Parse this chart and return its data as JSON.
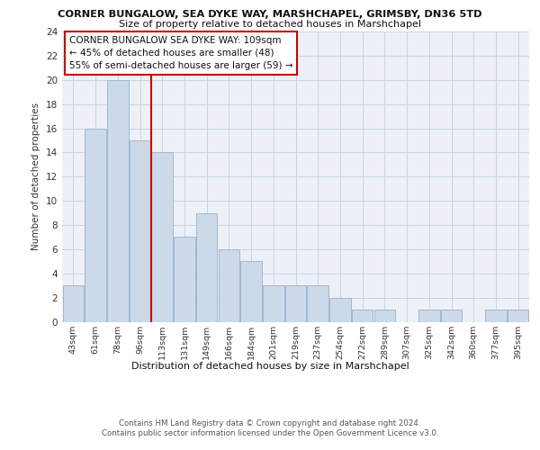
{
  "title1": "CORNER BUNGALOW, SEA DYKE WAY, MARSHCHAPEL, GRIMSBY, DN36 5TD",
  "title2": "Size of property relative to detached houses in Marshchapel",
  "xlabel": "Distribution of detached houses by size in Marshchapel",
  "ylabel": "Number of detached properties",
  "categories": [
    "43sqm",
    "61sqm",
    "78sqm",
    "96sqm",
    "113sqm",
    "131sqm",
    "149sqm",
    "166sqm",
    "184sqm",
    "201sqm",
    "219sqm",
    "237sqm",
    "254sqm",
    "272sqm",
    "289sqm",
    "307sqm",
    "325sqm",
    "342sqm",
    "360sqm",
    "377sqm",
    "395sqm"
  ],
  "values": [
    3,
    16,
    20,
    15,
    14,
    7,
    9,
    6,
    5,
    3,
    3,
    3,
    2,
    1,
    1,
    0,
    1,
    1,
    0,
    1,
    1
  ],
  "bar_color": "#ccd9e8",
  "bar_edge_color": "#a0b8d0",
  "redline_x": 3.5,
  "ylim": [
    0,
    24
  ],
  "yticks": [
    0,
    2,
    4,
    6,
    8,
    10,
    12,
    14,
    16,
    18,
    20,
    22,
    24
  ],
  "annotation_title": "CORNER BUNGALOW SEA DYKE WAY: 109sqm",
  "annotation_line1": "← 45% of detached houses are smaller (48)",
  "annotation_line2": "55% of semi-detached houses are larger (59) →",
  "annotation_box_color": "#ffffff",
  "annotation_box_edge": "#cc0000",
  "bg_color": "#edf1f7",
  "footer1": "Contains HM Land Registry data © Crown copyright and database right 2024.",
  "footer2": "Contains public sector information licensed under the Open Government Licence v3.0."
}
